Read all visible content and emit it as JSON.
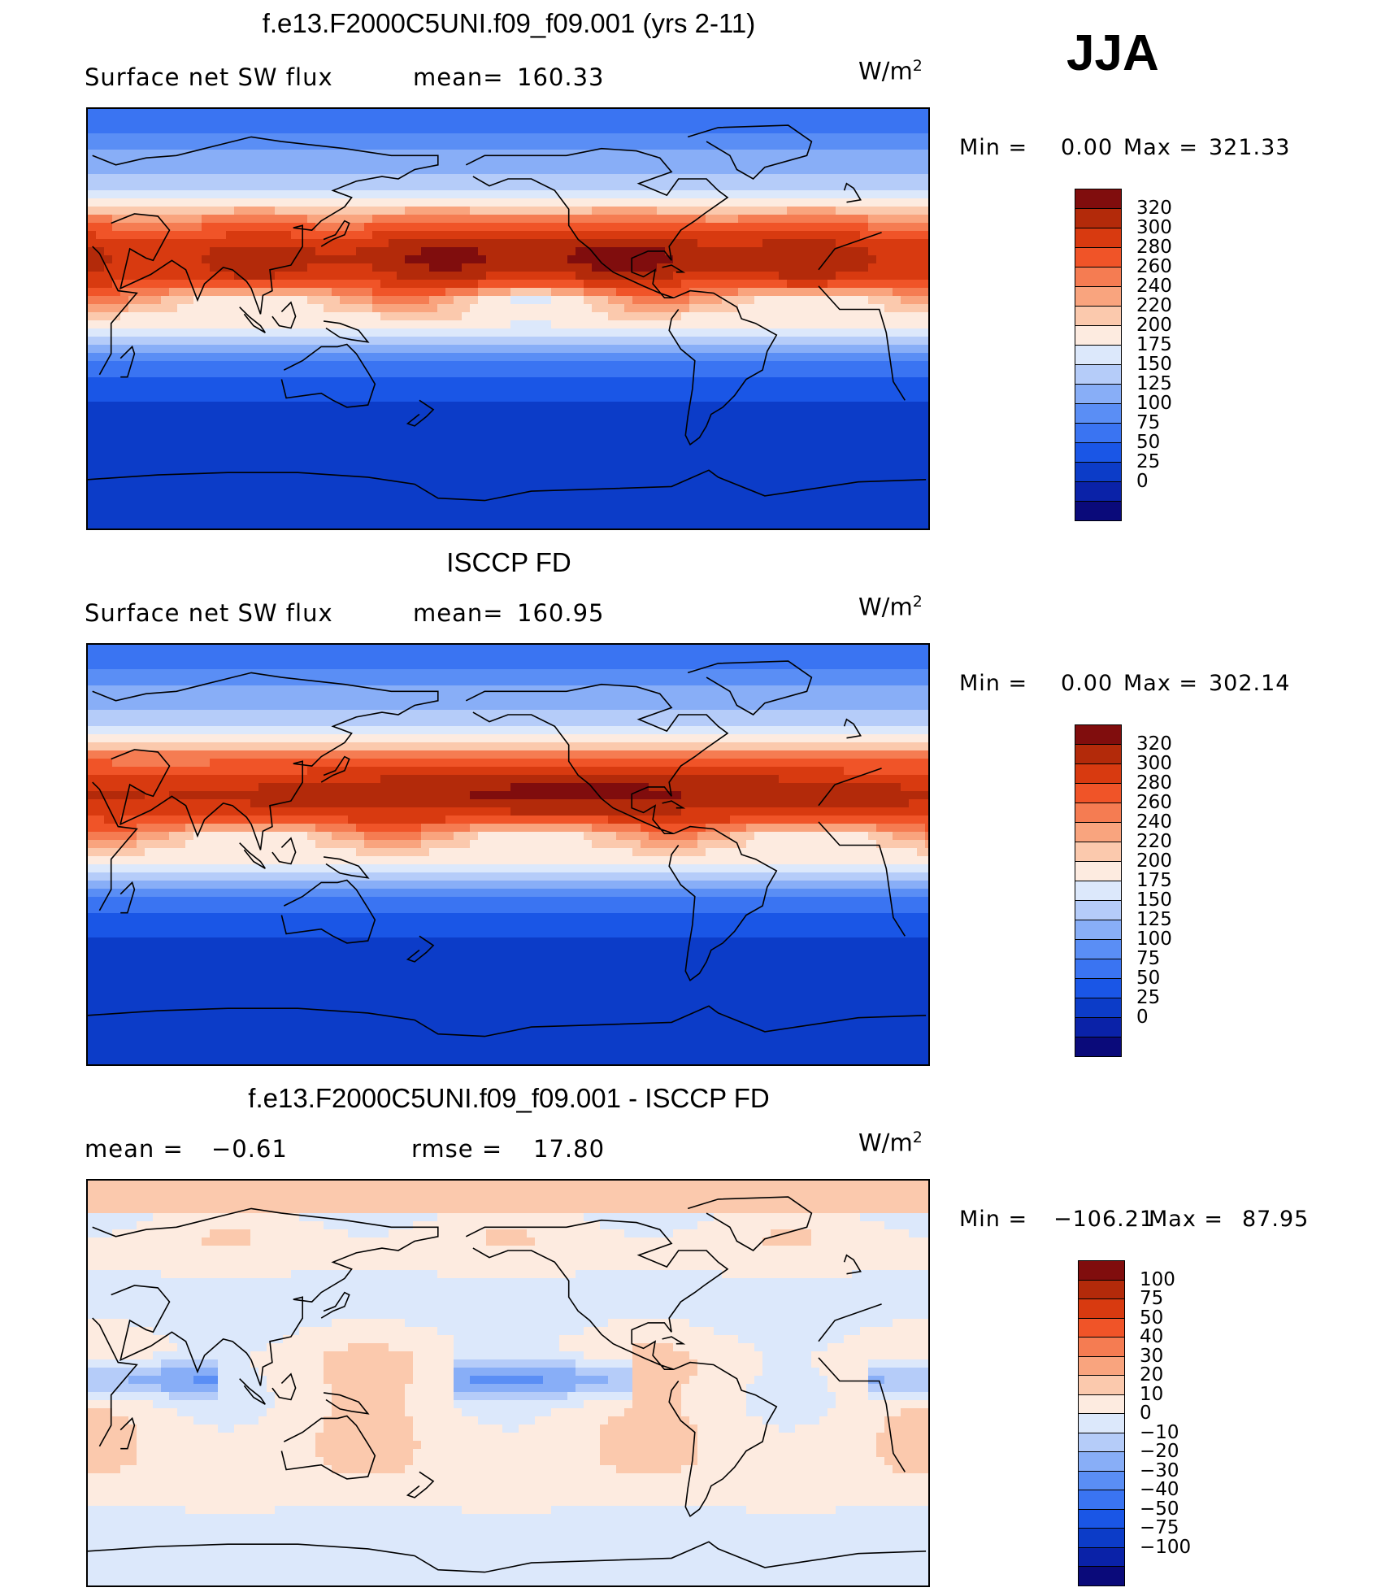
{
  "season": "JJA",
  "units_prefix": "W/m",
  "units_sup": "2",
  "panels": [
    {
      "title": "f.e13.F2000C5UNI.f09_f09.001 (yrs 2-11)",
      "stat_left_label": "Surface net SW flux",
      "stat_right_label": "mean=",
      "stat_right_value": "160.33",
      "min_label": "Min =",
      "min_value": "0.00",
      "max_label": "Max =",
      "max_value": "321.33",
      "kind": "model"
    },
    {
      "title": "ISCCP FD",
      "stat_left_label": "Surface net SW flux",
      "stat_right_label": "mean=",
      "stat_right_value": "160.95",
      "min_label": "Min =",
      "min_value": "0.00",
      "max_label": "Max =",
      "max_value": "302.14",
      "kind": "obs"
    },
    {
      "title": "f.e13.F2000C5UNI.f09_f09.001 - ISCCP FD",
      "stat_left_label": "mean =",
      "stat_left_value": "−0.61",
      "stat_right_label": "rmse =",
      "stat_right_value": "17.80",
      "min_label": "Min =",
      "min_value": "−106.21",
      "max_label": "Max =",
      "max_value": "87.95",
      "kind": "diff"
    }
  ],
  "chart_data": [
    {
      "type": "heatmap",
      "title": "f.e13.F2000C5UNI.f09_f09.001 (yrs 2-11)",
      "variable": "Surface net SW flux",
      "units": "W/m2",
      "season": "JJA",
      "mean": 160.33,
      "min": 0.0,
      "max": 321.33,
      "colorbar_levels": [
        0,
        25,
        50,
        75,
        100,
        125,
        150,
        175,
        200,
        220,
        240,
        260,
        280,
        300,
        320
      ],
      "colorbar_colors": [
        "#0a0a7a",
        "#0a22a8",
        "#0c3cc8",
        "#1a56e6",
        "#3a74f2",
        "#5a8ef5",
        "#88aef7",
        "#b5ccf9",
        "#dce8fb",
        "#fdebe0",
        "#fbc9ad",
        "#f9a47e",
        "#f57c52",
        "#f05428",
        "#d83a10",
        "#b32a0a",
        "#800d0d"
      ]
    },
    {
      "type": "heatmap",
      "title": "ISCCP FD",
      "variable": "Surface net SW flux",
      "units": "W/m2",
      "season": "JJA",
      "mean": 160.95,
      "min": 0.0,
      "max": 302.14,
      "colorbar_levels": [
        0,
        25,
        50,
        75,
        100,
        125,
        150,
        175,
        200,
        220,
        240,
        260,
        280,
        300,
        320
      ],
      "colorbar_colors": [
        "#0a0a7a",
        "#0a22a8",
        "#0c3cc8",
        "#1a56e6",
        "#3a74f2",
        "#5a8ef5",
        "#88aef7",
        "#b5ccf9",
        "#dce8fb",
        "#fdebe0",
        "#fbc9ad",
        "#f9a47e",
        "#f57c52",
        "#f05428",
        "#d83a10",
        "#b32a0a",
        "#800d0d"
      ]
    },
    {
      "type": "heatmap",
      "title": "f.e13.F2000C5UNI.f09_f09.001 - ISCCP FD",
      "units": "W/m2",
      "season": "JJA",
      "mean": -0.61,
      "rmse": 17.8,
      "min": -106.21,
      "max": 87.95,
      "colorbar_levels": [
        -100,
        -75,
        -50,
        -40,
        -30,
        -20,
        -10,
        0,
        10,
        20,
        30,
        40,
        50,
        75,
        100
      ],
      "colorbar_level_labels": [
        "−100",
        "−75",
        "−50",
        "−40",
        "−30",
        "−20",
        "−10",
        "0",
        "10",
        "20",
        "30",
        "40",
        "50",
        "75",
        "100"
      ],
      "colorbar_colors": [
        "#0a0a7a",
        "#0a22a8",
        "#0c3cc8",
        "#1a56e6",
        "#3a74f2",
        "#5a8ef5",
        "#88aef7",
        "#b5ccf9",
        "#dce8fb",
        "#fdebe0",
        "#fbc9ad",
        "#f9a47e",
        "#f57c52",
        "#f05428",
        "#d83a10",
        "#b32a0a",
        "#800d0d"
      ]
    }
  ]
}
